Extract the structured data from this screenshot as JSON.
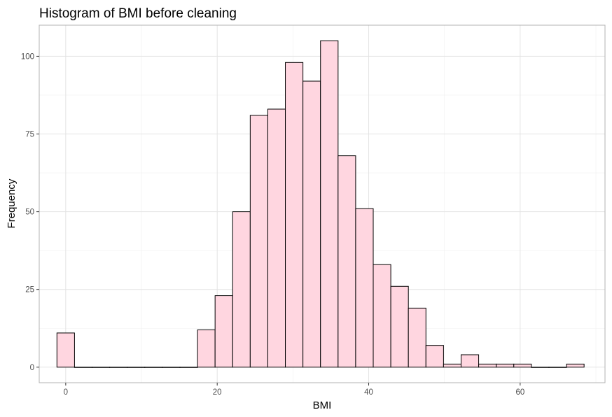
{
  "chart_data": {
    "type": "bar",
    "title": "Histogram of BMI before cleaning",
    "xlabel": "BMI",
    "ylabel": "Frequency",
    "xlim": [
      -3.5,
      71.2
    ],
    "ylim": [
      -5,
      110
    ],
    "xticks": [
      0,
      20,
      40,
      60
    ],
    "xtick_labels": [
      "0",
      "20",
      "40",
      "60"
    ],
    "yticks": [
      0,
      25,
      50,
      75,
      100
    ],
    "ytick_labels": [
      "0",
      "25",
      "50",
      "75",
      "100"
    ],
    "grid": true,
    "legend": "none",
    "bar_fill": "#ffd6e0",
    "bar_stroke": "#000000",
    "bins": [
      {
        "start": -1.16,
        "end": 1.16,
        "count": 11
      },
      {
        "start": 1.16,
        "end": 3.48,
        "count": 0
      },
      {
        "start": 3.48,
        "end": 5.8,
        "count": 0
      },
      {
        "start": 5.8,
        "end": 8.12,
        "count": 0
      },
      {
        "start": 8.12,
        "end": 10.44,
        "count": 0
      },
      {
        "start": 10.44,
        "end": 12.76,
        "count": 0
      },
      {
        "start": 12.76,
        "end": 15.08,
        "count": 0
      },
      {
        "start": 15.08,
        "end": 17.4,
        "count": 0
      },
      {
        "start": 17.4,
        "end": 19.72,
        "count": 12
      },
      {
        "start": 19.72,
        "end": 22.04,
        "count": 23
      },
      {
        "start": 22.04,
        "end": 24.36,
        "count": 50
      },
      {
        "start": 24.36,
        "end": 26.68,
        "count": 81
      },
      {
        "start": 26.68,
        "end": 29.0,
        "count": 83
      },
      {
        "start": 29.0,
        "end": 31.32,
        "count": 98
      },
      {
        "start": 31.32,
        "end": 33.64,
        "count": 92
      },
      {
        "start": 33.64,
        "end": 35.96,
        "count": 105
      },
      {
        "start": 35.96,
        "end": 38.28,
        "count": 68
      },
      {
        "start": 38.28,
        "end": 40.6,
        "count": 51
      },
      {
        "start": 40.6,
        "end": 42.92,
        "count": 33
      },
      {
        "start": 42.92,
        "end": 45.24,
        "count": 26
      },
      {
        "start": 45.24,
        "end": 47.56,
        "count": 19
      },
      {
        "start": 47.56,
        "end": 49.88,
        "count": 7
      },
      {
        "start": 49.88,
        "end": 52.2,
        "count": 1
      },
      {
        "start": 52.2,
        "end": 54.52,
        "count": 4
      },
      {
        "start": 54.52,
        "end": 56.84,
        "count": 1
      },
      {
        "start": 56.84,
        "end": 59.16,
        "count": 1
      },
      {
        "start": 59.16,
        "end": 61.48,
        "count": 1
      },
      {
        "start": 61.48,
        "end": 63.8,
        "count": 0
      },
      {
        "start": 63.8,
        "end": 66.12,
        "count": 0
      },
      {
        "start": 66.12,
        "end": 68.44,
        "count": 1
      }
    ]
  }
}
